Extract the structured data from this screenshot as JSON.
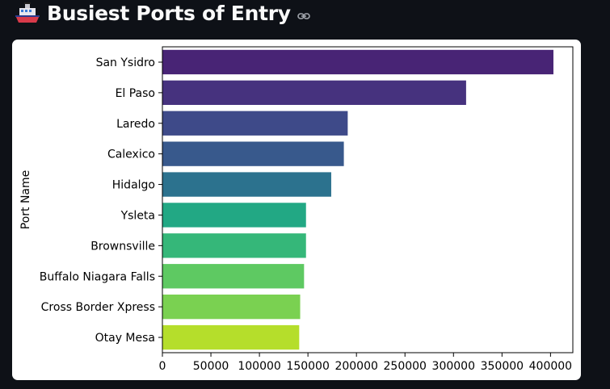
{
  "header": {
    "title": "Busiest Ports of Entry",
    "leading_icon": "ship-icon",
    "trailing_icon": "link-icon"
  },
  "colors": {
    "page_background": "#0e1117",
    "card_background": "#ffffff",
    "title_text": "#fafafa"
  },
  "chart_data": {
    "type": "bar",
    "orientation": "horizontal",
    "title": "",
    "xlabel": "",
    "ylabel": "Port Name",
    "categories": [
      "San Ysidro",
      "El Paso",
      "Laredo",
      "Calexico",
      "Hidalgo",
      "Ysleta",
      "Brownsville",
      "Buffalo Niagara Falls",
      "Cross Border Xpress",
      "Otay Mesa"
    ],
    "values": [
      403000,
      313000,
      191000,
      187000,
      174000,
      148000,
      148000,
      146000,
      142000,
      141000
    ],
    "colors": [
      "#482475",
      "#46327e",
      "#3e4a89",
      "#38598c",
      "#2c728e",
      "#22a884",
      "#35b779",
      "#5ec962",
      "#7ad151",
      "#b5de2b"
    ],
    "xlim": [
      0,
      423000
    ],
    "xticks": [
      0,
      50000,
      100000,
      150000,
      200000,
      250000,
      300000,
      350000,
      400000
    ],
    "xtick_labels": [
      "0",
      "50000",
      "100000",
      "150000",
      "200000",
      "250000",
      "300000",
      "350000",
      "400000"
    ],
    "grid": false,
    "legend": "none"
  }
}
